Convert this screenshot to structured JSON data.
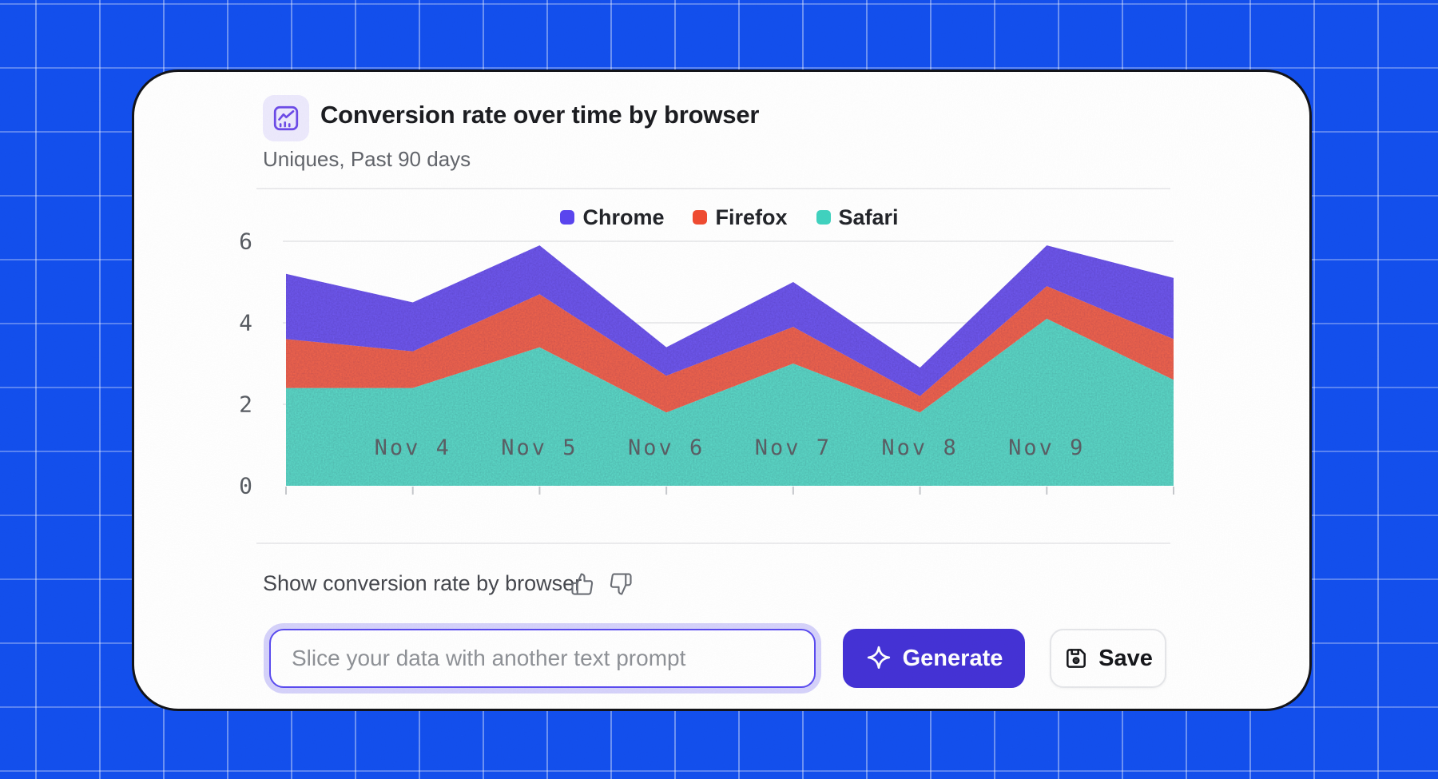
{
  "page": {
    "background_color": "#1450ee",
    "grid_line_color": "rgba(255,255,255,0.38)",
    "card_border_color": "#14151a"
  },
  "header": {
    "icon": "line-chart-icon",
    "title": "Conversion rate over time by browser",
    "subtitle": "Uniques, Past 90 days"
  },
  "chart_data": {
    "type": "area",
    "stacked": true,
    "title": "Conversion rate over time by browser",
    "x_labels": [
      "",
      "Nov 4",
      "Nov 5",
      "Nov 6",
      "Nov 7",
      "Nov 8",
      "Nov 9",
      ""
    ],
    "series": [
      {
        "name": "Chrome",
        "color": "#5b46f0",
        "fill": "#7059ee",
        "values": [
          1.6,
          1.2,
          1.2,
          0.7,
          1.1,
          0.7,
          1.0,
          1.5
        ]
      },
      {
        "name": "Firefox",
        "color": "#f04c32",
        "fill": "#f0654e",
        "values": [
          1.2,
          0.9,
          1.3,
          0.9,
          0.9,
          0.4,
          0.8,
          1.0
        ]
      },
      {
        "name": "Safari",
        "color": "#41d3c0",
        "fill": "#5dd8c7",
        "values": [
          2.4,
          2.4,
          3.4,
          1.8,
          3.0,
          1.8,
          4.1,
          2.6
        ]
      }
    ],
    "stack_order_bottom_to_top": [
      "Safari",
      "Firefox",
      "Chrome"
    ],
    "y_ticks": [
      0,
      2,
      4,
      6
    ],
    "ylim": [
      0,
      6.6
    ],
    "grid": "horizontal",
    "legend_position": "top-center",
    "axis_text_color": "#595d63",
    "gridline_color": "#e5e6e8",
    "tick_color": "#c7c9cd"
  },
  "feedback": {
    "label": "Show conversion rate by browser",
    "icons": [
      "thumbs-up-icon",
      "thumbs-down-icon"
    ]
  },
  "prompt": {
    "placeholder": "Slice your data with another text prompt",
    "value": ""
  },
  "actions": {
    "generate": "Generate",
    "save": "Save",
    "generate_color": "#4533d6"
  }
}
